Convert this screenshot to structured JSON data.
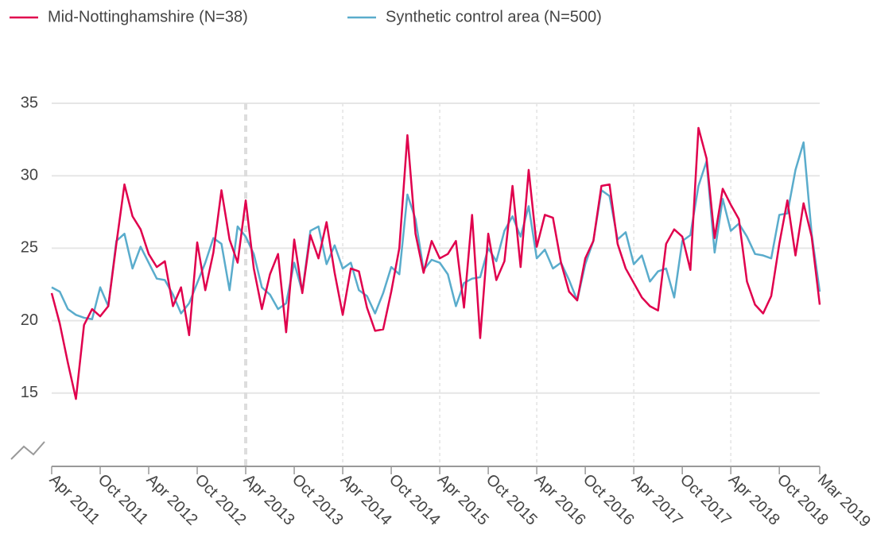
{
  "chart_data": {
    "type": "line",
    "categories": [
      "Apr 2011",
      null,
      null,
      null,
      null,
      null,
      "Oct 2011",
      null,
      null,
      null,
      null,
      null,
      "Apr 2012",
      null,
      null,
      null,
      null,
      null,
      "Oct 2012",
      null,
      null,
      null,
      null,
      null,
      "Apr 2013",
      null,
      null,
      null,
      null,
      null,
      "Oct 2013",
      null,
      null,
      null,
      null,
      null,
      "Apr 2014",
      null,
      null,
      null,
      null,
      null,
      "Oct 2014",
      null,
      null,
      null,
      null,
      null,
      "Apr 2015",
      null,
      null,
      null,
      null,
      null,
      "Oct 2015",
      null,
      null,
      null,
      null,
      null,
      "Apr 2016",
      null,
      null,
      null,
      null,
      null,
      "Oct 2016",
      null,
      null,
      null,
      null,
      null,
      "Apr 2017",
      null,
      null,
      null,
      null,
      null,
      "Oct 2017",
      null,
      null,
      null,
      null,
      null,
      "Apr 2018",
      null,
      null,
      null,
      null,
      null,
      "Oct 2018",
      null,
      null,
      null,
      null,
      "Mar 2019"
    ],
    "series": [
      {
        "name": "Mid-Nottinghamshire (N=38)",
        "color": "#e0004d",
        "values": [
          21.9,
          19.8,
          17.1,
          14.6,
          19.7,
          20.8,
          20.3,
          21.0,
          25.3,
          29.4,
          27.2,
          26.3,
          24.6,
          23.7,
          24.1,
          21.0,
          22.3,
          19.0,
          25.4,
          22.1,
          24.7,
          29.0,
          25.6,
          24.0,
          28.3,
          23.6,
          20.8,
          23.2,
          24.6,
          19.2,
          25.6,
          21.9,
          25.9,
          24.3,
          26.8,
          23.3,
          20.4,
          23.6,
          23.4,
          20.9,
          19.3,
          19.4,
          22.0,
          25.0,
          32.8,
          26.0,
          23.3,
          25.5,
          24.3,
          24.6,
          25.5,
          20.9,
          27.3,
          18.8,
          26.0,
          22.8,
          24.1,
          29.3,
          23.7,
          30.4,
          25.1,
          27.3,
          27.1,
          24.0,
          22.0,
          21.4,
          24.3,
          25.5,
          29.3,
          29.4,
          25.3,
          23.6,
          22.6,
          21.6,
          21.0,
          20.7,
          25.3,
          26.3,
          25.8,
          23.5,
          33.3,
          31.2,
          25.7,
          29.1,
          28.0,
          27.0,
          22.7,
          21.1,
          20.5,
          21.7,
          25.3,
          28.3,
          24.5,
          28.1,
          25.8,
          21.1
        ]
      },
      {
        "name": "Synthetic control area (N=500)",
        "color": "#5aaccc",
        "values": [
          22.3,
          22.0,
          20.8,
          20.4,
          20.2,
          20.1,
          22.3,
          21.0,
          25.5,
          26.0,
          23.6,
          25.1,
          24.0,
          22.9,
          22.8,
          21.8,
          20.5,
          21.2,
          22.6,
          24.0,
          25.7,
          25.3,
          22.1,
          26.5,
          25.8,
          24.6,
          22.3,
          21.8,
          20.8,
          21.2,
          24.0,
          22.0,
          26.2,
          26.5,
          23.9,
          25.2,
          23.6,
          24.0,
          22.1,
          21.7,
          20.5,
          21.9,
          23.7,
          23.2,
          28.7,
          27.0,
          23.5,
          24.2,
          24.0,
          23.2,
          21.0,
          22.6,
          22.9,
          23.0,
          25.0,
          24.1,
          26.2,
          27.2,
          25.8,
          27.9,
          24.3,
          24.9,
          23.6,
          24.0,
          22.8,
          21.4,
          23.9,
          25.5,
          29.0,
          28.6,
          25.6,
          26.1,
          23.9,
          24.5,
          22.7,
          23.4,
          23.6,
          21.6,
          25.5,
          25.9,
          29.3,
          31.0,
          24.7,
          28.4,
          26.2,
          26.7,
          25.8,
          24.6,
          24.5,
          24.3,
          27.3,
          27.4,
          30.4,
          32.3,
          26.0,
          22.0
        ]
      }
    ],
    "ylim": [
      10,
      35
    ],
    "yticks": [
      15,
      20,
      25,
      30,
      35
    ],
    "grid": true
  }
}
